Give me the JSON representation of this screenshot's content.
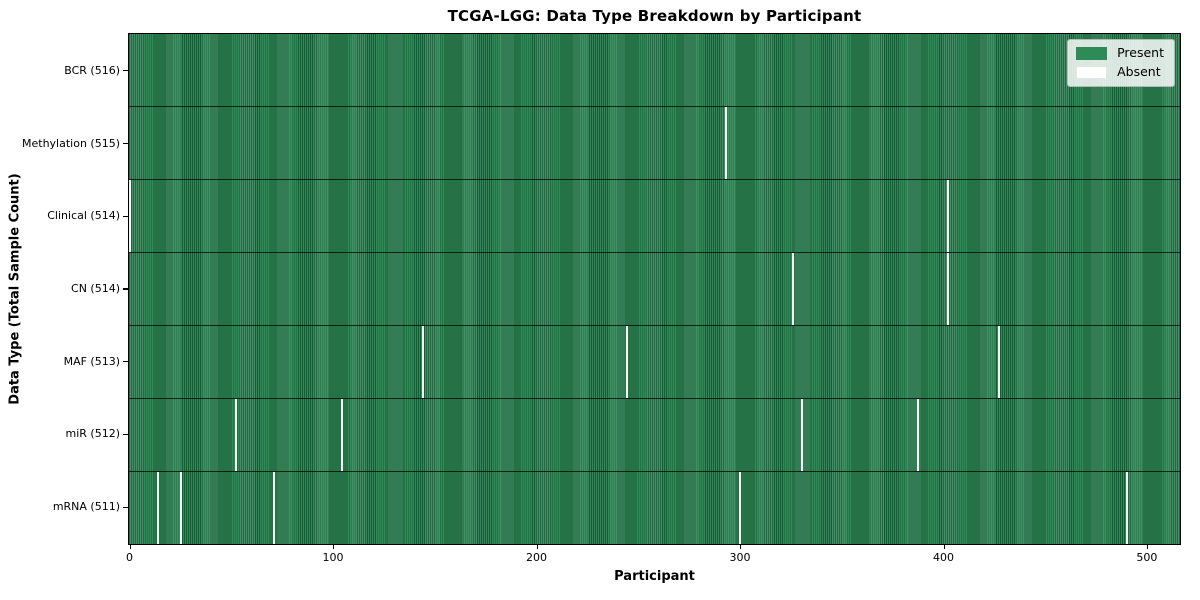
{
  "chart_data": {
    "type": "heatmap",
    "title": "TCGA-LGG: Data Type Breakdown by Participant",
    "xlabel": "Participant",
    "ylabel": "Data Type (Total Sample Count)",
    "x_ticks": [
      0,
      100,
      200,
      300,
      400,
      500
    ],
    "x_max": 516,
    "rows": [
      {
        "label": "BCR (516)",
        "total": 516,
        "absent_participants": []
      },
      {
        "label": "Methylation (515)",
        "total": 515,
        "absent_participants": [
          293
        ]
      },
      {
        "label": "Clinical (514)",
        "total": 514,
        "absent_participants": [
          0,
          402
        ]
      },
      {
        "label": "CN (514)",
        "total": 514,
        "absent_participants": [
          326,
          402
        ]
      },
      {
        "label": "MAF (513)",
        "total": 513,
        "absent_participants": [
          144,
          244,
          427
        ]
      },
      {
        "label": "miR (512)",
        "total": 512,
        "absent_participants": [
          52,
          104,
          330,
          387
        ]
      },
      {
        "label": "mRNA (511)",
        "total": 511,
        "absent_participants": [
          14,
          25,
          71,
          300,
          490
        ]
      }
    ],
    "legend": {
      "position": "upper right",
      "entries": [
        {
          "label": "Present",
          "color": "#2e8b57"
        },
        {
          "label": "Absent",
          "color": "#ffffff"
        }
      ]
    },
    "colors": {
      "present": "#2e8b57",
      "cell_edge": "#1c5837",
      "absent": "#f7f7f7",
      "spine": "#000000"
    },
    "grid": false
  }
}
